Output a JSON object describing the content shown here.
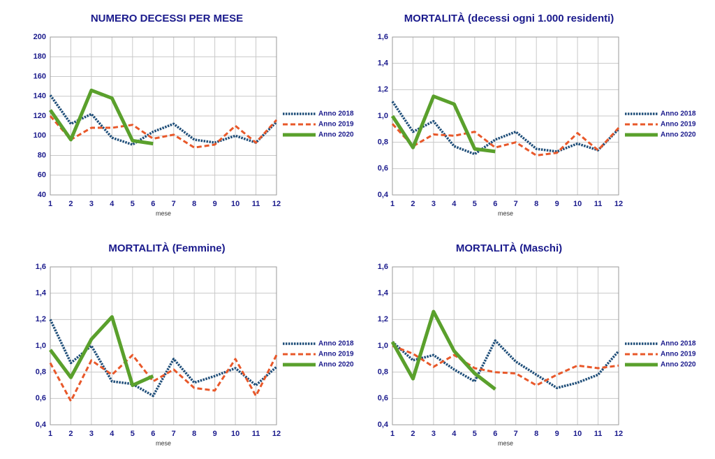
{
  "chart_data": [
    {
      "type": "line",
      "title": "NUMERO DECESSI PER MESE",
      "x_label": "mese",
      "x": [
        1,
        2,
        3,
        4,
        5,
        6,
        7,
        8,
        9,
        10,
        11,
        12
      ],
      "xlim": [
        1,
        12
      ],
      "xticks": [
        1,
        2,
        3,
        4,
        5,
        6,
        7,
        8,
        9,
        10,
        11,
        12
      ],
      "ylim": [
        40,
        200
      ],
      "yticks": [
        40,
        60,
        80,
        100,
        120,
        140,
        160,
        180,
        200
      ],
      "grid": true,
      "legend": "right",
      "series": [
        {
          "name": "Anno 2018",
          "color": "#1f4e79",
          "style": "dotted",
          "values": [
            141,
            112,
            122,
            98,
            91,
            104,
            112,
            96,
            93,
            100,
            93,
            114
          ]
        },
        {
          "name": "Anno 2019",
          "color": "#e8582a",
          "style": "dashed",
          "values": [
            120,
            96,
            108,
            108,
            111,
            97,
            101,
            88,
            91,
            110,
            93,
            116
          ]
        },
        {
          "name": "Anno 2020",
          "color": "#5aa02c",
          "style": "solid",
          "values": [
            126,
            96,
            146,
            138,
            95,
            92,
            null,
            null,
            null,
            null,
            null,
            null
          ]
        }
      ]
    },
    {
      "type": "line",
      "title": "MORTALITÀ (decessi ogni 1.000 residenti)",
      "x_label": "mese",
      "x": [
        1,
        2,
        3,
        4,
        5,
        6,
        7,
        8,
        9,
        10,
        11,
        12
      ],
      "xlim": [
        1,
        12
      ],
      "xticks": [
        1,
        2,
        3,
        4,
        5,
        6,
        7,
        8,
        9,
        10,
        11,
        12
      ],
      "ylim": [
        0.4,
        1.6
      ],
      "yticks": [
        {
          "value": 0.4,
          "label": "0,4"
        },
        {
          "value": 0.6,
          "label": "0,6"
        },
        {
          "value": 0.8,
          "label": "0,8"
        },
        {
          "value": 1.0,
          "label": "1,0"
        },
        {
          "value": 1.2,
          "label": "1,2"
        },
        {
          "value": 1.4,
          "label": "1,4"
        },
        {
          "value": 1.6,
          "label": "1,6"
        }
      ],
      "grid": true,
      "legend": "right",
      "series": [
        {
          "name": "Anno 2018",
          "color": "#1f4e79",
          "style": "dotted",
          "values": [
            1.11,
            0.88,
            0.96,
            0.77,
            0.71,
            0.82,
            0.88,
            0.75,
            0.73,
            0.79,
            0.74,
            0.9
          ]
        },
        {
          "name": "Anno 2019",
          "color": "#e8582a",
          "style": "dashed",
          "values": [
            0.94,
            0.77,
            0.86,
            0.85,
            0.88,
            0.76,
            0.8,
            0.7,
            0.72,
            0.87,
            0.74,
            0.91
          ]
        },
        {
          "name": "Anno 2020",
          "color": "#5aa02c",
          "style": "solid",
          "values": [
            1.0,
            0.76,
            1.15,
            1.09,
            0.75,
            0.73,
            null,
            null,
            null,
            null,
            null,
            null
          ]
        }
      ]
    },
    {
      "type": "line",
      "title": "MORTALITÀ (Femmine)",
      "x_label": "mese",
      "x": [
        1,
        2,
        3,
        4,
        5,
        6,
        7,
        8,
        9,
        10,
        11,
        12
      ],
      "xlim": [
        1,
        12
      ],
      "xticks": [
        1,
        2,
        3,
        4,
        5,
        6,
        7,
        8,
        9,
        10,
        11,
        12
      ],
      "ylim": [
        0.4,
        1.6
      ],
      "yticks": [
        {
          "value": 0.4,
          "label": "0,4"
        },
        {
          "value": 0.6,
          "label": "0,6"
        },
        {
          "value": 0.8,
          "label": "0,8"
        },
        {
          "value": 1.0,
          "label": "1,0"
        },
        {
          "value": 1.2,
          "label": "1,2"
        },
        {
          "value": 1.4,
          "label": "1,4"
        },
        {
          "value": 1.6,
          "label": "1,6"
        }
      ],
      "grid": true,
      "legend": "right",
      "series": [
        {
          "name": "Anno 2018",
          "color": "#1f4e79",
          "style": "dotted",
          "values": [
            1.2,
            0.87,
            1.0,
            0.73,
            0.71,
            0.62,
            0.9,
            0.72,
            0.77,
            0.83,
            0.7,
            0.84
          ]
        },
        {
          "name": "Anno 2019",
          "color": "#e8582a",
          "style": "dashed",
          "values": [
            0.87,
            0.58,
            0.89,
            0.78,
            0.93,
            0.73,
            0.82,
            0.68,
            0.66,
            0.9,
            0.62,
            0.93
          ]
        },
        {
          "name": "Anno 2020",
          "color": "#5aa02c",
          "style": "solid",
          "values": [
            0.97,
            0.76,
            1.05,
            1.22,
            0.7,
            0.77,
            null,
            null,
            null,
            null,
            null,
            null
          ]
        }
      ]
    },
    {
      "type": "line",
      "title": "MORTALITÀ (Maschi)",
      "x_label": "mese",
      "x": [
        1,
        2,
        3,
        4,
        5,
        6,
        7,
        8,
        9,
        10,
        11,
        12
      ],
      "xlim": [
        1,
        12
      ],
      "xticks": [
        1,
        2,
        3,
        4,
        5,
        6,
        7,
        8,
        9,
        10,
        11,
        12
      ],
      "ylim": [
        0.4,
        1.6
      ],
      "yticks": [
        {
          "value": 0.4,
          "label": "0,4"
        },
        {
          "value": 0.6,
          "label": "0,6"
        },
        {
          "value": 0.8,
          "label": "0,8"
        },
        {
          "value": 1.0,
          "label": "1,0"
        },
        {
          "value": 1.2,
          "label": "1,2"
        },
        {
          "value": 1.4,
          "label": "1,4"
        },
        {
          "value": 1.6,
          "label": "1,6"
        }
      ],
      "grid": true,
      "legend": "right",
      "series": [
        {
          "name": "Anno 2018",
          "color": "#1f4e79",
          "style": "dotted",
          "values": [
            1.03,
            0.89,
            0.93,
            0.82,
            0.73,
            1.04,
            0.88,
            0.78,
            0.68,
            0.72,
            0.78,
            0.96
          ]
        },
        {
          "name": "Anno 2019",
          "color": "#e8582a",
          "style": "dashed",
          "values": [
            1.0,
            0.94,
            0.84,
            0.93,
            0.83,
            0.8,
            0.79,
            0.7,
            0.78,
            0.85,
            0.83,
            0.85
          ]
        },
        {
          "name": "Anno 2020",
          "color": "#5aa02c",
          "style": "solid",
          "values": [
            1.03,
            0.75,
            1.26,
            0.96,
            0.79,
            0.67,
            null,
            null,
            null,
            null,
            null,
            null
          ]
        }
      ]
    }
  ]
}
